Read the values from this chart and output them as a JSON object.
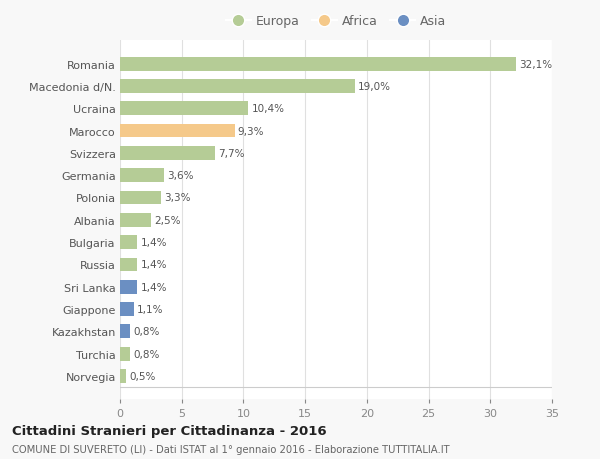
{
  "categories": [
    "Romania",
    "Macedonia d/N.",
    "Ucraina",
    "Marocco",
    "Svizzera",
    "Germania",
    "Polonia",
    "Albania",
    "Bulgaria",
    "Russia",
    "Sri Lanka",
    "Giappone",
    "Kazakhstan",
    "Turchia",
    "Norvegia"
  ],
  "values": [
    32.1,
    19.0,
    10.4,
    9.3,
    7.7,
    3.6,
    3.3,
    2.5,
    1.4,
    1.4,
    1.4,
    1.1,
    0.8,
    0.8,
    0.5
  ],
  "labels": [
    "32,1%",
    "19,0%",
    "10,4%",
    "9,3%",
    "7,7%",
    "3,6%",
    "3,3%",
    "2,5%",
    "1,4%",
    "1,4%",
    "1,4%",
    "1,1%",
    "0,8%",
    "0,8%",
    "0,5%"
  ],
  "continent": [
    "Europa",
    "Europa",
    "Europa",
    "Africa",
    "Europa",
    "Europa",
    "Europa",
    "Europa",
    "Europa",
    "Europa",
    "Asia",
    "Asia",
    "Asia",
    "Europa",
    "Europa"
  ],
  "colors": {
    "Europa": "#b5cc96",
    "Africa": "#f5c98a",
    "Asia": "#6b8fc2"
  },
  "xlim": [
    0,
    35
  ],
  "xticks": [
    0,
    5,
    10,
    15,
    20,
    25,
    30,
    35
  ],
  "title": "Cittadini Stranieri per Cittadinanza - 2016",
  "subtitle": "COMUNE DI SUVERETO (LI) - Dati ISTAT al 1° gennaio 2016 - Elaborazione TUTTITALIA.IT",
  "background_color": "#f8f8f8",
  "plot_background": "#ffffff",
  "grid_color": "#e0e0e0"
}
